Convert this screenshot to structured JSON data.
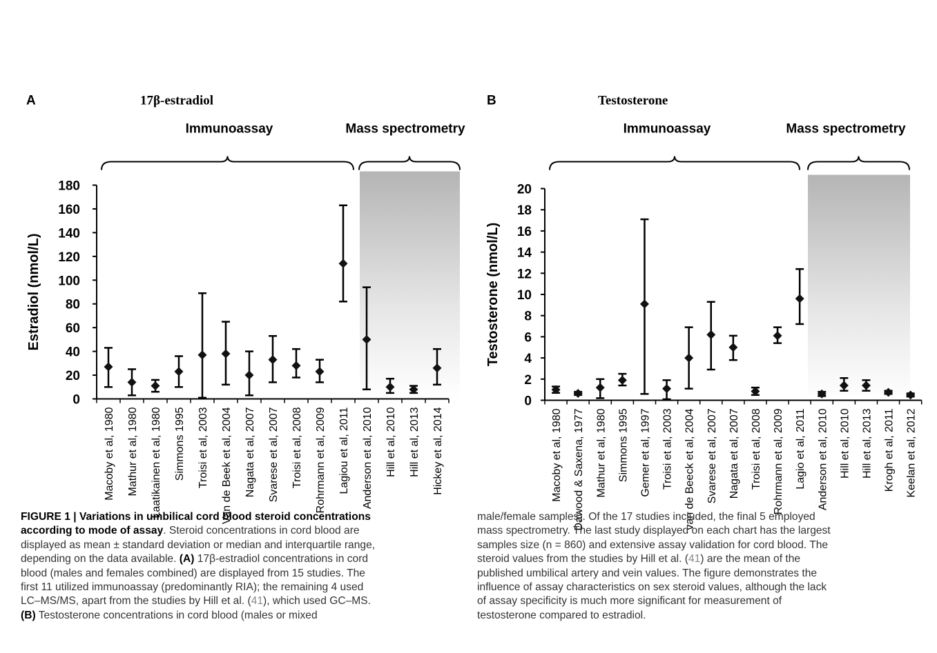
{
  "figure": {
    "panels": [
      {
        "letter": "A",
        "title": "17β-estradiol",
        "groups": [
          {
            "label": "Immunoassay"
          },
          {
            "label": "Mass spectrometry"
          }
        ]
      },
      {
        "letter": "B",
        "title": "Testosterone",
        "groups": [
          {
            "label": "Immunoassay"
          },
          {
            "label": "Mass spectrometry"
          }
        ]
      }
    ]
  },
  "chart_data": [
    {
      "type": "scatter",
      "title": "17β-estradiol",
      "xlabel": "",
      "ylabel": "Estradiol (nmol/L)",
      "ylim": [
        0,
        180
      ],
      "yticks": [
        0,
        20,
        40,
        60,
        80,
        100,
        120,
        140,
        160,
        180
      ],
      "grid": false,
      "error_bars": true,
      "shaded_region": "Mass spectrometry",
      "categories": [
        "Macoby et al, 1980",
        "Mathur et al, 1980",
        "Laatikainen et al, 1980",
        "Simmons 1995",
        "Troisi et al, 2003",
        "Van de Beek et al, 2004",
        "Nagata et al, 2007",
        "Svarese et al, 2007",
        "Troisi et al, 2008",
        "Rohrmann et al, 2009",
        "Lagiou et al, 2011",
        "Anderson et al, 2010",
        "Hill et al, 2010",
        "Hill et al, 2013",
        "Hickey et al, 2014"
      ],
      "values": [
        27,
        14,
        11,
        23,
        37,
        38,
        20,
        33,
        28,
        23,
        114,
        50,
        10,
        8,
        26
      ],
      "lower": [
        10,
        3,
        6,
        10,
        1,
        12,
        3,
        14,
        18,
        14,
        82,
        8,
        5,
        5,
        12
      ],
      "upper": [
        43,
        25,
        16,
        36,
        89,
        65,
        40,
        53,
        42,
        33,
        163,
        94,
        17,
        11,
        42
      ],
      "groups": [
        {
          "name": "Immunoassay",
          "count": 11
        },
        {
          "name": "Mass spectrometry",
          "count": 4
        }
      ]
    },
    {
      "type": "scatter",
      "title": "Testosterone",
      "xlabel": "",
      "ylabel": "Testosterone (nmol/L)",
      "ylim": [
        0,
        20
      ],
      "yticks": [
        0,
        2,
        4,
        6,
        8,
        10,
        12,
        14,
        16,
        18,
        20
      ],
      "grid": false,
      "error_bars": true,
      "shaded_region": "Mass spectrometry",
      "categories": [
        "Macoby et al, 1980",
        "Dawood & Saxena, 1977",
        "Mathur et al, 1980",
        "Simmons 1995",
        "Gemer et al, 1997",
        "Troisi et al, 2003",
        "van de Beeck et al, 2004",
        "Svarese et al, 2007",
        "Nagata et al, 2007",
        "Troisi et al, 2008",
        "Rohrmann et al, 2009",
        "Lagio et al, 2011",
        "Anderson et al, 2010",
        "Hill et al, 2010",
        "Hill et al, 2013",
        "Krogh et al, 2011",
        "Keelan et al, 2012"
      ],
      "values": [
        1.0,
        0.65,
        1.2,
        1.9,
        9.1,
        1.1,
        4.0,
        6.2,
        5.0,
        0.85,
        6.1,
        9.6,
        0.6,
        1.4,
        1.4,
        0.75,
        0.5
      ],
      "lower": [
        0.7,
        0.5,
        0.2,
        1.4,
        0.6,
        0.1,
        1.1,
        2.9,
        3.8,
        0.5,
        5.4,
        7.2,
        0.4,
        0.9,
        0.9,
        0.6,
        0.35
      ],
      "upper": [
        1.3,
        0.8,
        2.0,
        2.5,
        17.1,
        1.9,
        6.9,
        9.3,
        6.1,
        1.2,
        6.9,
        12.4,
        0.8,
        2.1,
        1.9,
        0.9,
        0.65
      ],
      "groups": [
        {
          "name": "Immunoassay",
          "count": 12
        },
        {
          "name": "Mass spectrometry",
          "count": 5
        }
      ]
    }
  ],
  "caption": {
    "left": [
      {
        "bold": "FIGURE 1 | Variations in umbilical cord blood steroid concentrations",
        "text": ""
      },
      {
        "bold": "according to mode of assay",
        "text": ". Steroid concentrations in cord blood are"
      },
      {
        "bold": "",
        "text": "displayed as mean ± standard deviation or median and interquartile range,"
      },
      {
        "bold": "",
        "text": "depending on the data available. ",
        "bold2": "(A)",
        "text2": " 17β-estradiol concentrations in cord"
      },
      {
        "bold": "",
        "text": "blood (males and females combined) are displayed from 15 studies. The"
      },
      {
        "bold": "",
        "text": "first 11 utilized immunoassay (predominantly RIA); the remaining 4 used"
      },
      {
        "bold": "",
        "text": "LC–MS/MS, apart from the studies by Hill et al. (",
        "ref": "41",
        "text2": "), which used GC–MS."
      },
      {
        "bold": "(B)",
        "text": " Testosterone concentrations in cord blood (males or mixed"
      }
    ],
    "right": [
      {
        "text": "male/female samples). Of the 17 studies included, the final 5 employed"
      },
      {
        "text": "mass spectrometry. The last study displayed on each chart has the largest"
      },
      {
        "text": "samples size (n = 860) and extensive assay validation for cord blood. The"
      },
      {
        "text": "steroid values from the studies by Hill et al. (",
        "ref": "41",
        "text2": ") are the mean of the"
      },
      {
        "text": "published umbilical artery and vein values. The figure demonstrates the"
      },
      {
        "text": "influence of assay characteristics on sex steroid values, although the lack"
      },
      {
        "text": "of assay specificity is much more significant for measurement of"
      },
      {
        "text": "testosterone compared to estradiol."
      }
    ]
  }
}
